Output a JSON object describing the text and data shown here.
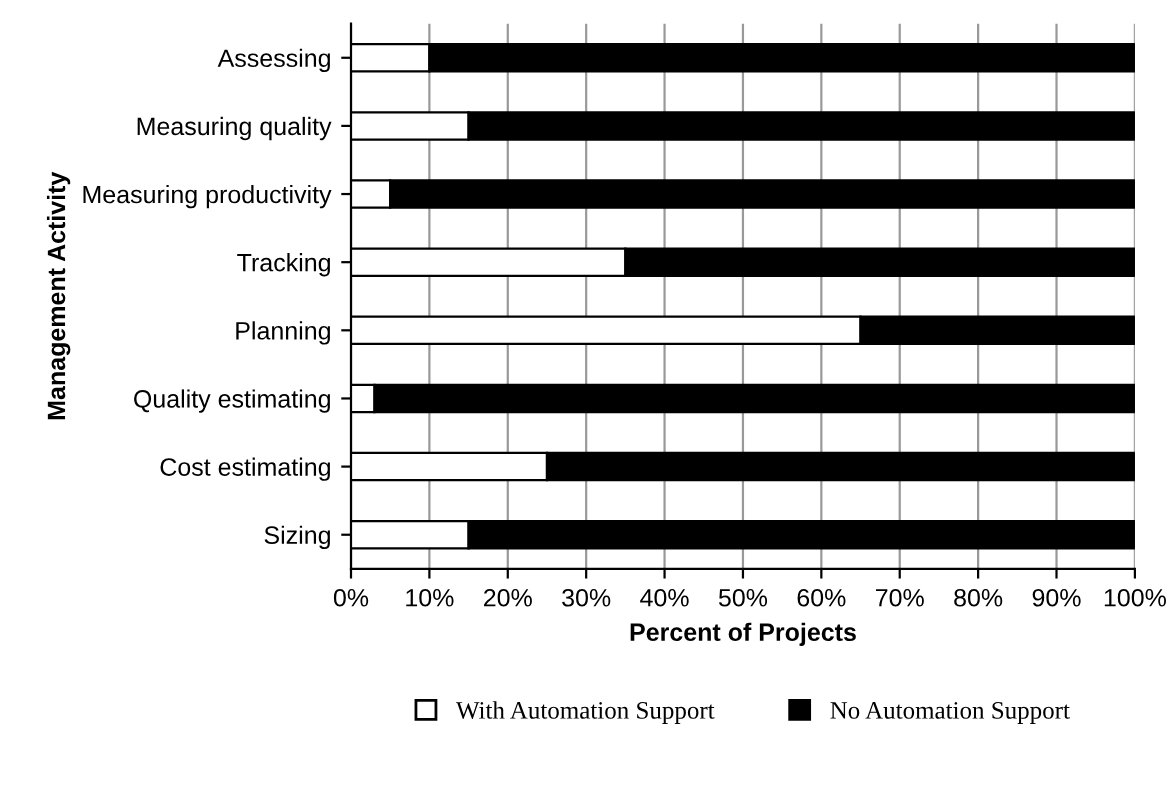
{
  "chart_data": {
    "type": "bar",
    "orientation": "horizontal",
    "stacked": true,
    "xlabel": "Percent of Projects",
    "ylabel": "Management Activity",
    "categories": [
      "Assessing",
      "Measuring quality",
      "Measuring productivity",
      "Tracking",
      "Planning",
      "Quality estimating",
      "Cost estimating",
      "Sizing"
    ],
    "series": [
      {
        "name": "With Automation Support",
        "color": "#ffffff",
        "values": [
          10,
          15,
          5,
          35,
          65,
          3,
          25,
          15
        ]
      },
      {
        "name": "No Automation Support",
        "color": "#000000",
        "values": [
          90,
          85,
          95,
          65,
          35,
          97,
          75,
          85
        ]
      }
    ],
    "xlim": [
      0,
      100
    ],
    "xticks": [
      {
        "value": 0,
        "label": "0%"
      },
      {
        "value": 10,
        "label": "10%"
      },
      {
        "value": 20,
        "label": "20%"
      },
      {
        "value": 30,
        "label": "30%"
      },
      {
        "value": 40,
        "label": "40%"
      },
      {
        "value": 50,
        "label": "50%"
      },
      {
        "value": 60,
        "label": "60%"
      },
      {
        "value": 70,
        "label": "70%"
      },
      {
        "value": 80,
        "label": "80%"
      },
      {
        "value": 90,
        "label": "90%"
      },
      {
        "value": 100,
        "label": "100%"
      }
    ],
    "grid": "x",
    "legend": "bottom"
  }
}
